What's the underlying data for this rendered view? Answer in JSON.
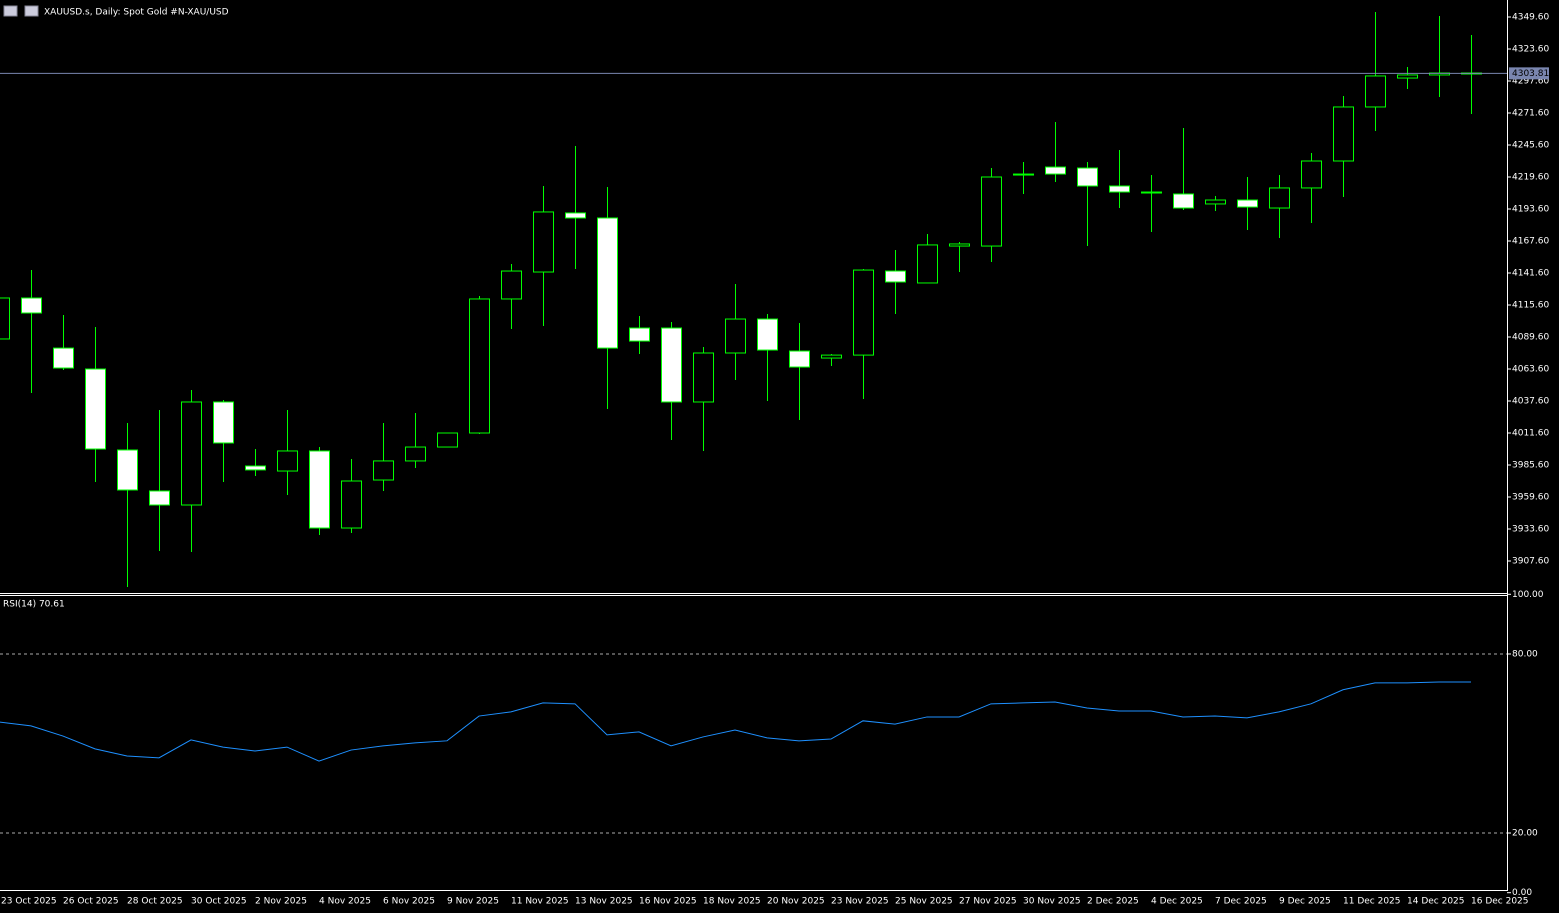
{
  "chart_data": [
    {
      "type": "candlestick",
      "title": "XAUUSD.s, Daily:  Spot Gold #N-XAU/USD",
      "categories": [
        "23 Oct 2025",
        null,
        "26 Oct 2025",
        null,
        "28 Oct 2025",
        null,
        "30 Oct 2025",
        null,
        "2 Nov 2025",
        null,
        "4 Nov 2025",
        null,
        "6 Nov 2025",
        null,
        "9 Nov 2025",
        null,
        "11 Nov 2025",
        null,
        "13 Nov 2025",
        null,
        "16 Nov 2025",
        null,
        "18 Nov 2025",
        null,
        "20 Nov 2025",
        null,
        "23 Nov 2025",
        null,
        "25 Nov 2025",
        null,
        "27 Nov 2025",
        null,
        "30 Nov 2025",
        null,
        "2 Dec 2025",
        null,
        "4 Dec 2025",
        null,
        "7 Dec 2025",
        null,
        "9 Dec 2025",
        null,
        "11 Dec 2025",
        null,
        "14 Dec 2025",
        null,
        "16 Dec 2025"
      ],
      "open": [
        4088.0,
        4121.3,
        4080.6,
        4063.6,
        3997.8,
        3964.5,
        3953.1,
        4036.8,
        3984.8,
        3980.7,
        3997.0,
        3934.4,
        3973.4,
        3988.9,
        4000.2,
        4011.6,
        4120.5,
        4142.4,
        4190.4,
        4186.3,
        4096.9,
        4096.9,
        4036.8,
        4076.6,
        4104.2,
        4078.2,
        4072.5,
        4074.9,
        4143.2,
        4133.5,
        4163.5,
        4163.5,
        4221.2,
        4227.7,
        4226.9,
        4212.3,
        4206.6,
        4205.8,
        4197.7,
        4200.9,
        4194.4,
        4210.7,
        4232.6,
        4276.5,
        4300.0,
        4302.5,
        4304.1
      ],
      "high": [
        4121.3,
        4144.0,
        4107.5,
        4097.7,
        4019.7,
        4030.3,
        4046.5,
        4038.4,
        3998.6,
        4030.3,
        4000.2,
        3990.5,
        4019.7,
        4027.9,
        4011.6,
        4122.9,
        4148.9,
        4212.3,
        4244.8,
        4211.5,
        4106.7,
        4101.8,
        4081.5,
        4132.7,
        4108.3,
        4101.0,
        4075.8,
        4144.8,
        4160.3,
        4173.3,
        4166.8,
        4226.9,
        4231.8,
        4264.3,
        4231.8,
        4241.5,
        4221.2,
        4259.4,
        4204.2,
        4219.6,
        4221.2,
        4239.1,
        4285.4,
        4353.7,
        4309.0,
        4350.4,
        4335.0
      ],
      "low": [
        4088.0,
        4044.1,
        4062.8,
        3971.8,
        3886.5,
        3915.7,
        3914.9,
        3971.8,
        3976.7,
        3961.2,
        3928.7,
        3930.3,
        3964.5,
        3983.2,
        4000.2,
        4010.8,
        4096.1,
        4098.5,
        4144.8,
        4031.1,
        4075.8,
        4005.9,
        3997.0,
        4054.7,
        4037.6,
        4022.2,
        4066.0,
        4039.2,
        4108.3,
        4133.5,
        4142.4,
        4150.5,
        4205.8,
        4215.5,
        4163.5,
        4194.4,
        4174.9,
        4192.8,
        4192.0,
        4176.5,
        4170.0,
        4182.2,
        4203.4,
        4257.0,
        4291.1,
        4284.6,
        4270.8
      ],
      "close": [
        4121.3,
        4109.1,
        4064.4,
        3998.6,
        3965.3,
        3953.1,
        4036.8,
        4003.5,
        3981.6,
        3997.0,
        3934.4,
        3972.6,
        3988.9,
        4000.2,
        4011.6,
        4120.5,
        4143.2,
        4191.2,
        4186.3,
        4080.6,
        4086.3,
        4036.8,
        4076.6,
        4104.2,
        4079.0,
        4065.2,
        4074.9,
        4144.0,
        4134.3,
        4164.4,
        4165.2,
        4219.6,
        4222.0,
        4222.0,
        4212.3,
        4207.4,
        4207.4,
        4194.4,
        4200.9,
        4195.2,
        4210.7,
        4232.6,
        4276.5,
        4301.7,
        4302.5,
        4304.1,
        4303.81
      ],
      "up_color": "#000000",
      "down_color": "#ffffff",
      "edge_color": "#00ff00",
      "ylim": [
        3881.6,
        4362.6
      ],
      "yticks": [
        {
          "value": 3907.6,
          "label": "3907.60"
        },
        {
          "value": 3933.6,
          "label": "3933.60"
        },
        {
          "value": 3959.6,
          "label": "3959.60"
        },
        {
          "value": 3985.6,
          "label": "3985.60"
        },
        {
          "value": 4011.6,
          "label": "4011.60"
        },
        {
          "value": 4037.6,
          "label": "4037.60"
        },
        {
          "value": 4063.6,
          "label": "4063.60"
        },
        {
          "value": 4089.6,
          "label": "4089.60"
        },
        {
          "value": 4115.6,
          "label": "4115.60"
        },
        {
          "value": 4141.6,
          "label": "4141.60"
        },
        {
          "value": 4167.6,
          "label": "4167.60"
        },
        {
          "value": 4193.6,
          "label": "4193.60"
        },
        {
          "value": 4219.6,
          "label": "4219.60"
        },
        {
          "value": 4245.6,
          "label": "4245.60"
        },
        {
          "value": 4271.6,
          "label": "4271.60"
        },
        {
          "value": 4297.6,
          "label": "4297.60"
        },
        {
          "value": 4323.6,
          "label": "4323.60"
        },
        {
          "value": 4349.6,
          "label": "4349.60"
        }
      ],
      "current_price": 4303.81,
      "current_price_color": "#7a86b0"
    },
    {
      "type": "line",
      "title": "RSI(14) 70.61",
      "values": [
        57.2,
        55.9,
        52.5,
        48.2,
        45.8,
        45.2,
        51.2,
        48.8,
        47.5,
        48.8,
        44.1,
        47.8,
        49.2,
        50.2,
        50.9,
        59.2,
        60.6,
        63.6,
        63.3,
        52.9,
        53.9,
        49.2,
        52.2,
        54.5,
        51.9,
        50.9,
        51.5,
        57.6,
        56.5,
        58.9,
        58.9,
        63.3,
        63.6,
        63.9,
        61.9,
        60.9,
        60.9,
        58.9,
        59.2,
        58.6,
        60.6,
        63.3,
        68.0,
        70.3,
        70.3,
        70.6,
        70.61
      ],
      "color": "#1e90ff",
      "ylim": [
        0,
        100
      ],
      "yticks": [
        {
          "value": 0,
          "label": "0.00"
        },
        {
          "value": 20,
          "label": "20.00"
        },
        {
          "value": 80,
          "label": "80.00"
        },
        {
          "value": 100,
          "label": "100.00"
        }
      ],
      "grid": true
    }
  ]
}
